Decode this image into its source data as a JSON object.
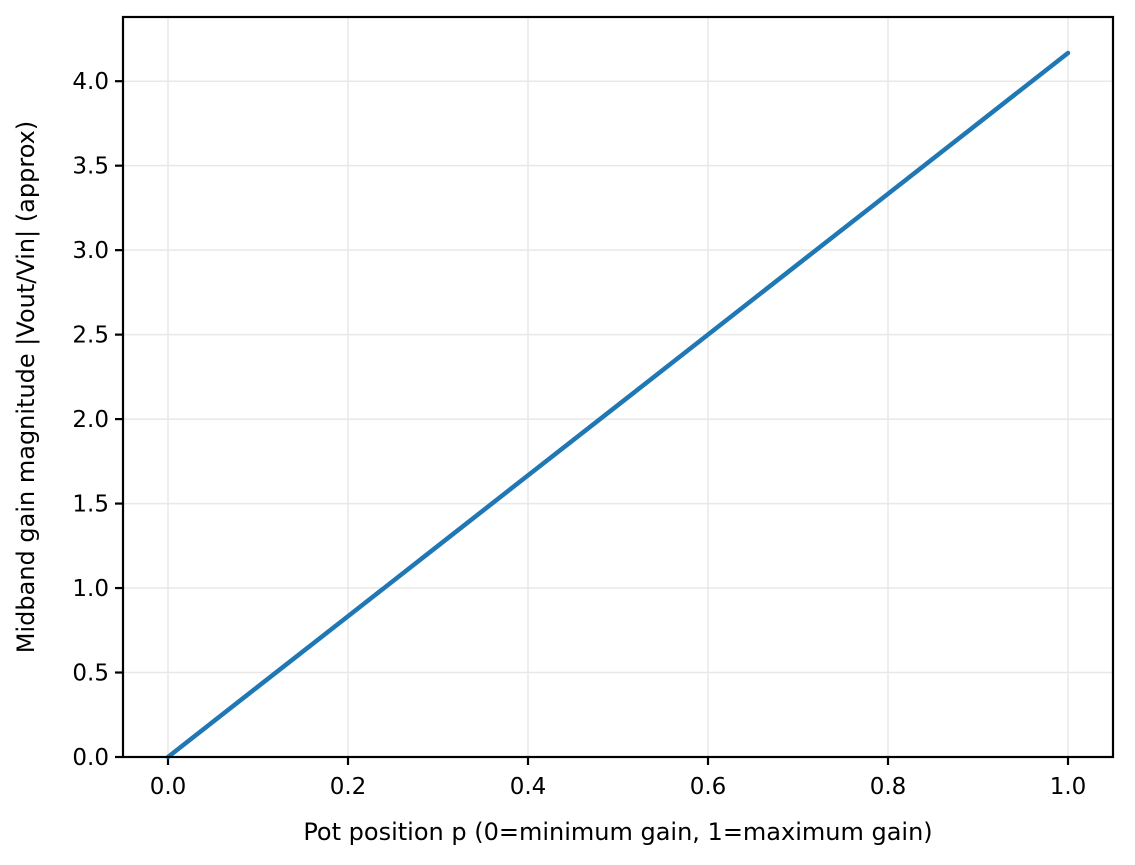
{
  "chart_data": {
    "type": "line",
    "title": "",
    "xlabel": "Pot position p (0=minimum gain, 1=maximum gain)",
    "ylabel": "Midband gain magnitude |Vout/Vin| (approx)",
    "xlim": [
      -0.05,
      1.05
    ],
    "ylim": [
      0,
      4.38
    ],
    "xticks": [
      0.0,
      0.2,
      0.4,
      0.6,
      0.8,
      1.0
    ],
    "xtick_labels": [
      "0.0",
      "0.2",
      "0.4",
      "0.6",
      "0.8",
      "1.0"
    ],
    "yticks": [
      0.0,
      0.5,
      1.0,
      1.5,
      2.0,
      2.5,
      3.0,
      3.5,
      4.0
    ],
    "ytick_labels": [
      "0.0",
      "0.5",
      "1.0",
      "1.5",
      "2.0",
      "2.5",
      "3.0",
      "3.5",
      "4.0"
    ],
    "grid": true,
    "legend": "none",
    "series": [
      {
        "name": "midband-gain-vs-pot-position",
        "x": [
          0.0,
          0.1,
          0.2,
          0.3,
          0.4,
          0.5,
          0.6,
          0.7,
          0.8,
          0.9,
          1.0
        ],
        "y": [
          0.0,
          0.417,
          0.833,
          1.25,
          1.667,
          2.083,
          2.5,
          2.917,
          3.333,
          3.75,
          4.167
        ],
        "color": "#1f77b4"
      }
    ],
    "colors": {
      "line": "#1f77b4",
      "grid": "#e8e8e8",
      "axis": "#000000",
      "background": "#ffffff"
    }
  }
}
